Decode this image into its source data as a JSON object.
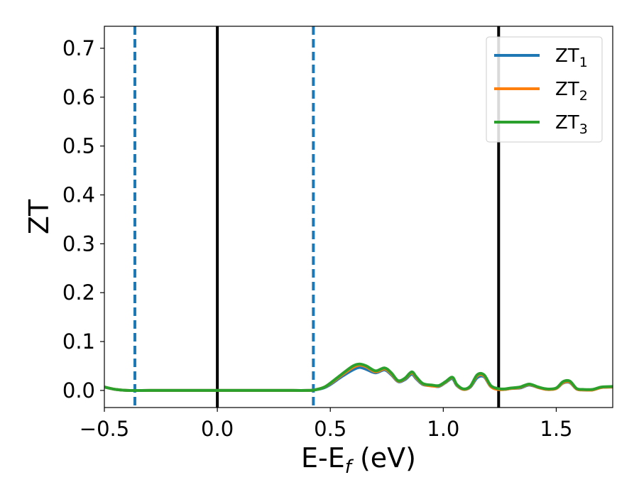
{
  "chart_data": {
    "type": "line",
    "xlabel_main": "E-E",
    "xlabel_sub": "f",
    "xlabel_unit": " (eV)",
    "ylabel": "ZT",
    "xlim": [
      -0.5,
      1.75
    ],
    "ylim": [
      -0.035,
      0.745
    ],
    "x_ticks": [
      -0.5,
      0.0,
      0.5,
      1.0,
      1.5
    ],
    "x_tick_labels": [
      "−0.5",
      "0.0",
      "0.5",
      "1.0",
      "1.5"
    ],
    "y_ticks": [
      0.0,
      0.1,
      0.2,
      0.3,
      0.4,
      0.5,
      0.6,
      0.7
    ],
    "y_tick_labels": [
      "0.0",
      "0.1",
      "0.2",
      "0.3",
      "0.4",
      "0.5",
      "0.6",
      "0.7"
    ],
    "grid": false,
    "legend_position": "top-right",
    "vlines": [
      {
        "x": 0.0,
        "color": "#000000",
        "style": "solid"
      },
      {
        "x": 1.245,
        "color": "#000000",
        "style": "solid"
      },
      {
        "x": -0.365,
        "color": "#1f77b4",
        "style": "dashed"
      },
      {
        "x": 0.425,
        "color": "#1f77b4",
        "style": "dashed"
      }
    ],
    "x": [
      -0.5,
      -0.45,
      -0.4,
      -0.3,
      -0.2,
      -0.1,
      0.0,
      0.1,
      0.2,
      0.3,
      0.4,
      0.43,
      0.47,
      0.5,
      0.55,
      0.6,
      0.63,
      0.66,
      0.7,
      0.74,
      0.77,
      0.8,
      0.83,
      0.86,
      0.88,
      0.91,
      0.95,
      0.98,
      1.01,
      1.04,
      1.06,
      1.09,
      1.12,
      1.15,
      1.18,
      1.21,
      1.24,
      1.27,
      1.3,
      1.34,
      1.38,
      1.42,
      1.46,
      1.5,
      1.53,
      1.56,
      1.59,
      1.62,
      1.66,
      1.7,
      1.75
    ],
    "series": [
      {
        "name": "1",
        "color": "#1f77b4",
        "values": [
          0.007,
          0.002,
          0.0,
          0.0,
          0.0,
          0.0,
          0.0,
          0.0,
          0.0,
          0.0,
          0.0,
          0.001,
          0.005,
          0.012,
          0.028,
          0.042,
          0.047,
          0.043,
          0.036,
          0.042,
          0.032,
          0.018,
          0.022,
          0.033,
          0.024,
          0.012,
          0.01,
          0.008,
          0.016,
          0.024,
          0.01,
          0.002,
          0.007,
          0.026,
          0.028,
          0.008,
          0.003,
          0.002,
          0.004,
          0.005,
          0.011,
          0.006,
          0.002,
          0.004,
          0.015,
          0.016,
          0.003,
          0.001,
          0.001,
          0.006,
          0.007
        ]
      },
      {
        "name": "2",
        "color": "#ff7f0e",
        "values": [
          0.007,
          0.002,
          0.0,
          0.0,
          0.0,
          0.0,
          0.0,
          0.0,
          0.0,
          0.0,
          0.0,
          0.001,
          0.006,
          0.014,
          0.031,
          0.047,
          0.052,
          0.048,
          0.038,
          0.044,
          0.034,
          0.019,
          0.024,
          0.036,
          0.026,
          0.013,
          0.009,
          0.009,
          0.017,
          0.026,
          0.011,
          0.002,
          0.008,
          0.03,
          0.03,
          0.008,
          0.002,
          0.002,
          0.004,
          0.006,
          0.012,
          0.006,
          0.002,
          0.004,
          0.016,
          0.017,
          0.003,
          0.001,
          0.001,
          0.006,
          0.007
        ]
      },
      {
        "name": "3",
        "color": "#2ca02c",
        "values": [
          0.007,
          0.002,
          0.0,
          0.0,
          0.0,
          0.0,
          0.0,
          0.0,
          0.0,
          0.0,
          0.0,
          0.001,
          0.006,
          0.015,
          0.033,
          0.05,
          0.054,
          0.05,
          0.04,
          0.046,
          0.036,
          0.02,
          0.025,
          0.038,
          0.028,
          0.014,
          0.011,
          0.01,
          0.018,
          0.027,
          0.012,
          0.003,
          0.009,
          0.032,
          0.032,
          0.01,
          0.004,
          0.003,
          0.005,
          0.007,
          0.013,
          0.007,
          0.003,
          0.005,
          0.018,
          0.019,
          0.004,
          0.002,
          0.002,
          0.007,
          0.008
        ]
      }
    ],
    "legend": [
      {
        "main": "ZT",
        "sub": "1",
        "color": "#1f77b4"
      },
      {
        "main": "ZT",
        "sub": "2",
        "color": "#ff7f0e"
      },
      {
        "main": "ZT",
        "sub": "3",
        "color": "#2ca02c"
      }
    ]
  }
}
